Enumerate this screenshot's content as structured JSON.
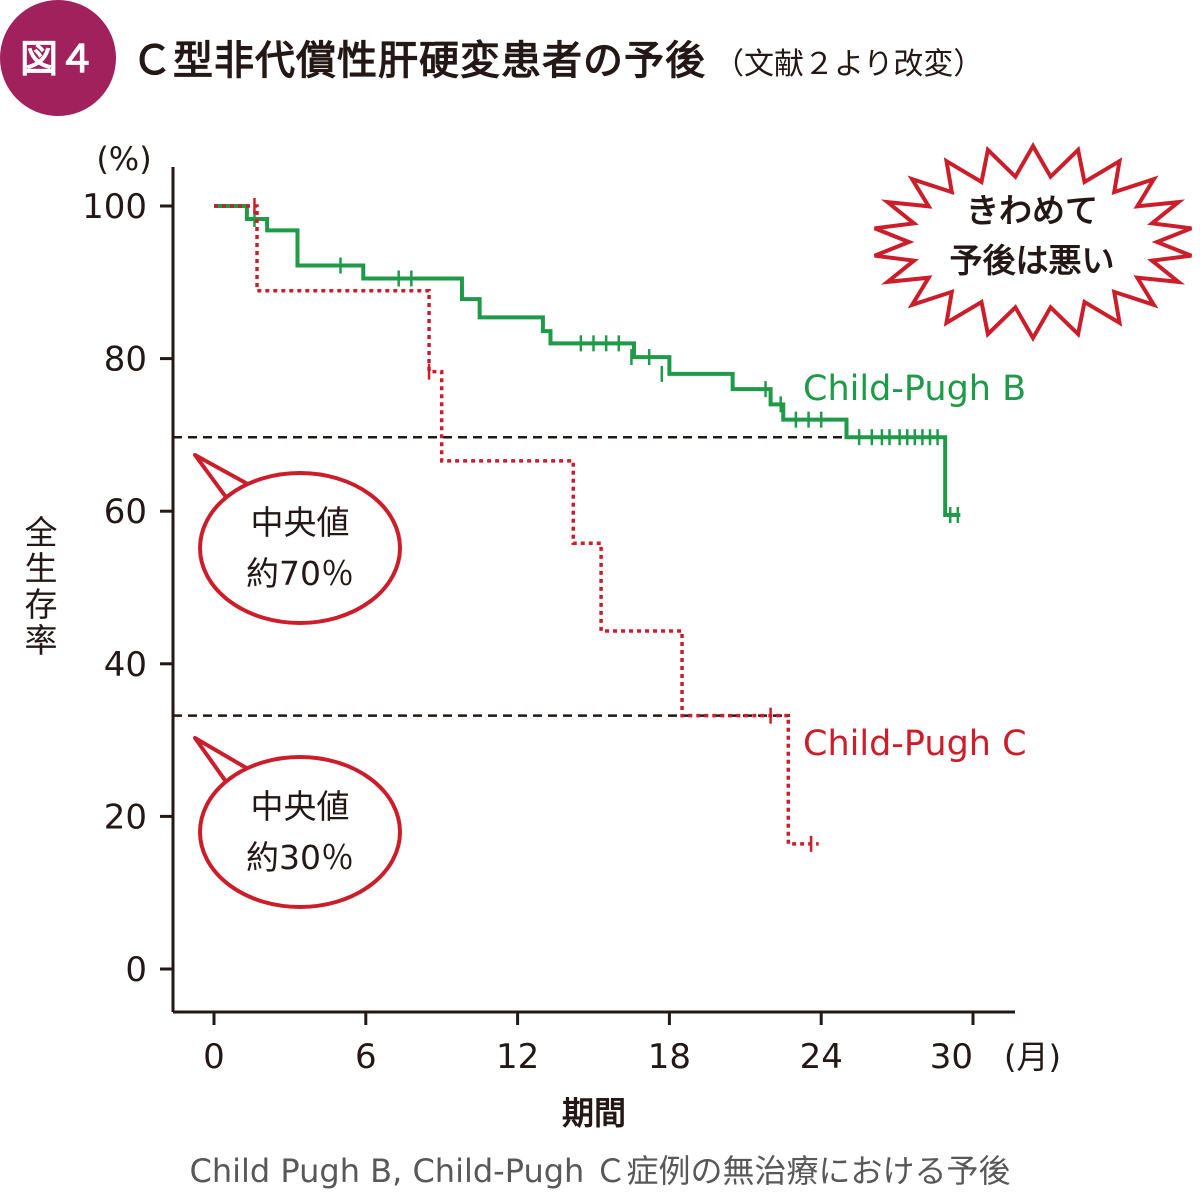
{
  "figure": {
    "badge": "図４",
    "title": "Ｃ型非代償性肝硬変患者の予後",
    "source": "（文献２より改変）",
    "caption": "Child Pugh B, Child-Pugh Ｃ症例の無治療における予後"
  },
  "colors": {
    "badge": "#a0215c",
    "green": "#1e9a48",
    "red": "#cc1e2a",
    "text": "#231815",
    "balloon": "#cc1e2a"
  },
  "callouts": {
    "burst": "きわめて 予後は悪い",
    "median_b": "中央値 約70％",
    "median_c": "中央値 約30％"
  },
  "chart_data": {
    "type": "line",
    "subtype": "kaplan-meier step",
    "xlabel": "期間",
    "ylabel": "全生存率",
    "x_unit": "(月)",
    "y_unit": "(%)",
    "xlim": [
      0,
      30
    ],
    "ylim": [
      0,
      100
    ],
    "x_ticks": [
      0,
      6,
      12,
      18,
      24,
      30
    ],
    "y_ticks": [
      0,
      20,
      40,
      60,
      80,
      100
    ],
    "reference_lines": [
      69.7,
      33.2
    ],
    "series": [
      {
        "name": "Child-Pugh B",
        "style": "solid",
        "steps": [
          [
            0,
            100
          ],
          [
            1.3,
            98.3
          ],
          [
            2.1,
            96.8
          ],
          [
            3.3,
            95.2
          ],
          [
            3.3,
            92.2
          ],
          [
            5.9,
            90.5
          ],
          [
            9.8,
            87.8
          ],
          [
            10.5,
            85.4
          ],
          [
            13.0,
            83.6
          ],
          [
            13.3,
            82.0
          ],
          [
            16.6,
            80.2
          ],
          [
            18.0,
            78.0
          ],
          [
            20.5,
            76.0
          ],
          [
            22.0,
            74.0
          ],
          [
            22.5,
            72.0
          ],
          [
            25.0,
            69.7
          ],
          [
            28.9,
            59.5
          ],
          [
            29.5,
            59.5
          ]
        ],
        "censor_times": [
          1.6,
          5.0,
          7.3,
          7.8,
          14.5,
          15.0,
          15.5,
          16.0,
          16.5,
          17.2,
          17.7,
          21.8,
          22.4,
          23.0,
          23.5,
          24.0,
          25.5,
          26.0,
          26.4,
          26.7,
          27.1,
          27.4,
          27.7,
          28.0,
          28.3,
          28.6,
          29.1,
          29.4
        ],
        "censor_values": [
          98.3,
          92.2,
          90.5,
          90.5,
          82.0,
          82.0,
          82.0,
          82.0,
          80.2,
          80.2,
          78.0,
          76.0,
          74.0,
          72.0,
          72.0,
          72.0,
          69.7,
          69.7,
          69.7,
          69.7,
          69.7,
          69.7,
          69.7,
          69.7,
          69.7,
          69.7,
          59.5,
          59.5
        ]
      },
      {
        "name": "Child-Pugh C",
        "style": "dotted",
        "steps": [
          [
            0,
            100
          ],
          [
            1.7,
            88.9
          ],
          [
            8.5,
            78.3
          ],
          [
            9.0,
            66.6
          ],
          [
            14.2,
            55.8
          ],
          [
            15.3,
            44.3
          ],
          [
            18.5,
            33.2
          ],
          [
            22.7,
            16.4
          ],
          [
            23.9,
            16.4
          ]
        ],
        "censor_times": [
          1.6,
          8.5,
          22.0,
          23.6
        ],
        "censor_values": [
          100,
          78.3,
          33.2,
          16.4
        ]
      }
    ]
  }
}
